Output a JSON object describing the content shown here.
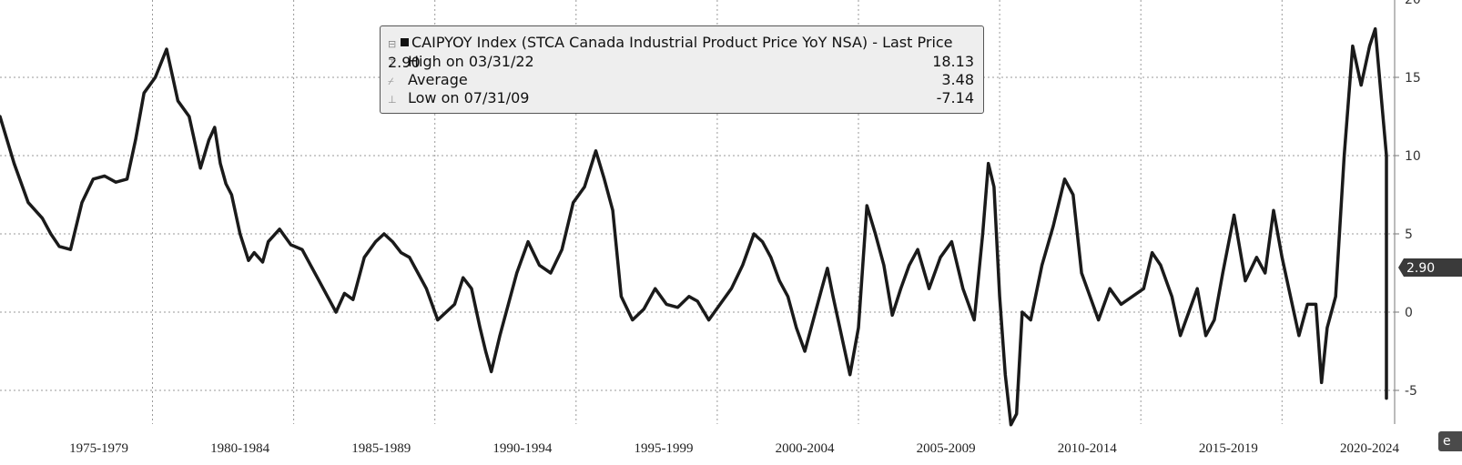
{
  "chart_data": {
    "type": "line",
    "series": [
      {
        "x": [
          1973.5,
          1974.0,
          1974.5,
          1975.0,
          1975.3,
          1975.6,
          1976.0,
          1976.4,
          1976.8,
          1977.2,
          1977.6,
          1978.0,
          1978.3,
          1978.6,
          1979.0,
          1979.4,
          1979.8,
          1980.2,
          1980.6,
          1980.9,
          1981.1,
          1981.3,
          1981.5,
          1981.7,
          1982.0,
          1982.3,
          1982.5,
          1982.8,
          1983.0,
          1983.4,
          1983.8,
          1984.2,
          1984.5,
          1984.8,
          1985.1,
          1985.4,
          1985.7,
          1986.0,
          1986.4,
          1986.8,
          1987.1,
          1987.4,
          1987.7,
          1988.0,
          1988.3,
          1988.6,
          1989.0,
          1989.3,
          1989.6,
          1989.9,
          1990.2,
          1990.5,
          1990.7,
          1990.9,
          1991.2,
          1991.5,
          1991.8,
          1992.2,
          1992.6,
          1993.0,
          1993.4,
          1993.8,
          1994.2,
          1994.6,
          1994.9,
          1995.2,
          1995.5,
          1995.9,
          1996.3,
          1996.7,
          1997.1,
          1997.5,
          1997.9,
          1998.2,
          1998.6,
          1999.0,
          1999.4,
          1999.8,
          2000.2,
          2000.5,
          2000.8,
          2001.1,
          2001.4,
          2001.7,
          2002.0,
          2002.3,
          2002.6,
          2002.8,
          2003.0,
          2003.3,
          2003.6,
          2003.9,
          2004.2,
          2004.5,
          2004.8,
          2005.1,
          2005.4,
          2005.7,
          2006.0,
          2006.4,
          2006.8,
          2007.2,
          2007.6,
          2008.0,
          2008.3,
          2008.5,
          2008.7,
          2008.9,
          2009.1,
          2009.3,
          2009.5,
          2009.7,
          2010.0,
          2010.4,
          2010.8,
          2011.2,
          2011.5,
          2011.8,
          2012.1,
          2012.4,
          2012.8,
          2013.2,
          2013.6,
          2014.0,
          2014.3,
          2014.6,
          2015.0,
          2015.3,
          2015.6,
          2015.9,
          2016.2,
          2016.5,
          2016.8,
          2017.2,
          2017.6,
          2018.0,
          2018.3,
          2018.6,
          2018.9,
          2019.2,
          2019.5,
          2019.8,
          2020.1,
          2020.3,
          2020.5,
          2020.8,
          2021.1,
          2021.4,
          2021.7,
          2022.0,
          2022.2,
          2022.4,
          2022.7,
          2023.0,
          2023.2,
          2023.4,
          2023.6,
          2023.8,
          2024.0,
          2024.2,
          2024.4,
          2024.6,
          2024.9
        ],
        "y": [
          12.5,
          9.5,
          7.0,
          6.0,
          5.0,
          4.2,
          4.0,
          7.0,
          8.5,
          8.7,
          8.3,
          8.5,
          11.0,
          14.0,
          15.0,
          16.8,
          13.5,
          12.5,
          9.2,
          11.0,
          11.8,
          9.5,
          8.2,
          7.5,
          5.0,
          3.3,
          3.8,
          3.2,
          4.5,
          5.3,
          4.3,
          4.0,
          3.0,
          2.0,
          1.0,
          0.0,
          1.2,
          0.8,
          3.5,
          4.5,
          5.0,
          4.5,
          3.8,
          3.5,
          2.5,
          1.5,
          -0.5,
          0.0,
          0.5,
          2.2,
          1.5,
          -1.0,
          -2.5,
          -3.8,
          -1.5,
          0.5,
          2.5,
          4.5,
          3.0,
          2.5,
          4.0,
          7.0,
          8.0,
          10.3,
          8.5,
          6.5,
          1.0,
          -0.5,
          0.2,
          1.5,
          0.5,
          0.3,
          1.0,
          0.7,
          -0.5,
          0.5,
          1.5,
          3.0,
          5.0,
          4.5,
          3.5,
          2.0,
          1.0,
          -1.0,
          -2.5,
          -0.5,
          1.5,
          2.8,
          1.0,
          -1.5,
          -4.0,
          -1.0,
          6.8,
          5.0,
          3.0,
          -0.2,
          1.5,
          3.0,
          4.0,
          1.5,
          3.5,
          4.5,
          1.5,
          -0.5,
          5.0,
          9.5,
          8.0,
          1.0,
          -4.0,
          -7.2,
          -6.5,
          0.0,
          -0.5,
          3.0,
          5.5,
          8.5,
          7.5,
          2.5,
          1.0,
          -0.5,
          1.5,
          0.5,
          1.0,
          1.5,
          3.8,
          3.0,
          1.0,
          -1.5,
          0.0,
          1.5,
          -1.5,
          -0.5,
          2.5,
          6.2,
          2.0,
          3.5,
          2.5,
          6.5,
          3.5,
          1.0,
          -1.5,
          0.5,
          0.5,
          -4.5,
          -1.0,
          1.0,
          10.0,
          17.0,
          14.5,
          17.0,
          18.1,
          14.0,
          10.0,
          8.0,
          3.0,
          -4.0,
          -5.5,
          0.0,
          0.5,
          -3.0,
          -2.5,
          1.5,
          2.9
        ]
      }
    ],
    "xlim": [
      1973.5,
      2025.5
    ],
    "ylim": [
      -7,
      20
    ],
    "yticks": [
      "-5",
      "0",
      "5",
      "10",
      "15",
      "20"
    ],
    "x_period_labels": [
      "1975-1979",
      "1980-1984",
      "1985-1989",
      "1990-1994",
      "1995-1999",
      "2000-2004",
      "2005-2009",
      "2010-2014",
      "2015-2019",
      "2020-2024"
    ],
    "grid": true,
    "colors": {
      "line": "#1a1a1a",
      "grid": "#9a9a9a",
      "badge": "#3a3a3a"
    },
    "last_value_label": "2.90"
  },
  "legend": {
    "title": "CAIPYOY Index (STCA Canada Industrial Product Price YoY NSA) - Last Price 2.90",
    "rows": [
      {
        "icon": "high-marker-icon",
        "label": "High on 03/31/22",
        "value": "18.13"
      },
      {
        "icon": "average-marker-icon",
        "label": "Average",
        "value": "3.48"
      },
      {
        "icon": "low-marker-icon",
        "label": "Low on 07/31/09",
        "value": "-7.14"
      }
    ]
  },
  "corner_badge": "e"
}
